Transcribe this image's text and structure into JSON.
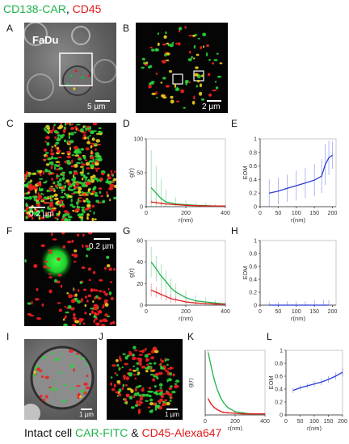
{
  "header": {
    "green": "CD138-CAR",
    "sep": ", ",
    "red": "CD45"
  },
  "footer": {
    "prefix": "Intact cell ",
    "green": "CAR-FITC",
    "amp": " & ",
    "red": "CD45-Alexa647"
  },
  "panels": {
    "A": {
      "letter": "A",
      "cell_label": "FaDu",
      "scale": "5 µm"
    },
    "B": {
      "letter": "B",
      "scale": "2 µm"
    },
    "C": {
      "letter": "C",
      "scale": "0.2 µm"
    },
    "D": {
      "letter": "D"
    },
    "E": {
      "letter": "E"
    },
    "F": {
      "letter": "F",
      "scale": "0.2 µm"
    },
    "G": {
      "letter": "G"
    },
    "H": {
      "letter": "H"
    },
    "I": {
      "letter": "I",
      "scale": "1 µm"
    },
    "J": {
      "letter": "J",
      "scale": "1 µm"
    },
    "K": {
      "letter": "K"
    },
    "L": {
      "letter": "L"
    }
  },
  "colors": {
    "green": "#1fb34a",
    "red": "#e01b1b",
    "blue": "#2b3bd6",
    "axis": "#555555"
  },
  "chart_data": [
    {
      "id": "D",
      "type": "line",
      "xlabel": "r(nm)",
      "ylabel": "g(r)",
      "xlim": [
        0,
        400
      ],
      "ylim": [
        0,
        100
      ],
      "xticks": [
        0,
        200,
        400
      ],
      "yticks": [
        0,
        50,
        100
      ],
      "error_bars": true,
      "series": [
        {
          "color": "green",
          "x": [
            25,
            50,
            75,
            100,
            150,
            200,
            250,
            300,
            350,
            400
          ],
          "values": [
            28,
            20,
            12,
            7,
            4,
            3,
            2,
            1.5,
            1,
            1
          ],
          "err": [
            55,
            40,
            28,
            18,
            10,
            7,
            5,
            4,
            3,
            2
          ]
        },
        {
          "color": "red",
          "x": [
            25,
            50,
            75,
            100,
            150,
            200,
            250,
            300,
            350,
            400
          ],
          "values": [
            7,
            6,
            5,
            4,
            3,
            2,
            1.5,
            1,
            1,
            1
          ],
          "err": [
            3,
            3,
            2,
            2,
            1,
            1,
            1,
            1,
            1,
            1
          ]
        }
      ]
    },
    {
      "id": "E",
      "type": "line",
      "xlabel": "r(nm)",
      "ylabel": "EOM",
      "xlim": [
        0,
        210
      ],
      "ylim": [
        0,
        1
      ],
      "xticks": [
        0,
        50,
        100,
        150,
        200
      ],
      "yticks": [
        0,
        0.2,
        0.4,
        0.6,
        0.8,
        1
      ],
      "error_bars": true,
      "series": [
        {
          "color": "blue",
          "x": [
            25,
            50,
            75,
            100,
            125,
            150,
            170,
            180,
            190,
            200
          ],
          "values": [
            0.2,
            0.23,
            0.27,
            0.31,
            0.35,
            0.39,
            0.45,
            0.62,
            0.72,
            0.76
          ],
          "err": [
            0.2,
            0.2,
            0.2,
            0.22,
            0.22,
            0.24,
            0.25,
            0.3,
            0.25,
            0.2
          ]
        }
      ]
    },
    {
      "id": "G",
      "type": "line",
      "xlabel": "r(nm)",
      "ylabel": "g(r)",
      "xlim": [
        0,
        400
      ],
      "ylim": [
        0,
        60
      ],
      "xticks": [
        0,
        200,
        400
      ],
      "yticks": [
        0,
        20,
        40,
        60
      ],
      "error_bars": true,
      "series": [
        {
          "color": "green",
          "x": [
            25,
            50,
            75,
            100,
            125,
            150,
            200,
            250,
            300,
            350,
            400
          ],
          "values": [
            40,
            34,
            27,
            22,
            16,
            12,
            7,
            4,
            3,
            2,
            1
          ],
          "err": [
            14,
            12,
            11,
            10,
            9,
            8,
            6,
            5,
            4,
            3,
            2
          ]
        },
        {
          "color": "red",
          "x": [
            25,
            50,
            75,
            100,
            125,
            150,
            200,
            250,
            300,
            350,
            400
          ],
          "values": [
            14,
            12,
            10,
            8,
            6,
            5,
            3,
            2,
            1.5,
            1,
            1
          ],
          "err": [
            6,
            5,
            5,
            4,
            4,
            3,
            2,
            2,
            1,
            1,
            1
          ]
        }
      ]
    },
    {
      "id": "H",
      "type": "line",
      "xlabel": "r(nm)",
      "ylabel": "EOM",
      "xlim": [
        0,
        210
      ],
      "ylim": [
        0,
        1
      ],
      "xticks": [
        0,
        50,
        100,
        150,
        200
      ],
      "yticks": [
        0,
        0.2,
        0.4,
        0.6,
        0.8,
        1
      ],
      "error_bars": true,
      "series": [
        {
          "color": "blue",
          "x": [
            25,
            50,
            75,
            100,
            125,
            150,
            175,
            190
          ],
          "values": [
            0,
            0,
            0,
            0,
            0,
            0,
            0,
            0
          ],
          "err": [
            0.05,
            0.05,
            0.06,
            0.06,
            0.06,
            0.07,
            0.08,
            0.08
          ]
        }
      ]
    },
    {
      "id": "K",
      "type": "line",
      "xlabel": "r(nm)",
      "ylabel": "g(r)",
      "xlim": [
        0,
        400
      ],
      "ylim": [
        0,
        60
      ],
      "xticks": [
        0,
        200,
        400
      ],
      "yticks": [],
      "error_bars": true,
      "series": [
        {
          "color": "green",
          "x": [
            20,
            40,
            60,
            80,
            100,
            120,
            150,
            200,
            250,
            300,
            400
          ],
          "values": [
            58,
            45,
            33,
            24,
            17,
            12,
            7,
            3,
            2,
            1,
            1
          ],
          "err": [
            2,
            2,
            2,
            1.5,
            1.5,
            1,
            1,
            1,
            1,
            1,
            1
          ]
        },
        {
          "color": "red",
          "x": [
            20,
            40,
            60,
            80,
            100,
            120,
            150,
            200,
            250,
            300,
            400
          ],
          "values": [
            15,
            10,
            7,
            5,
            3.5,
            2.5,
            2,
            1.5,
            1,
            1,
            1
          ],
          "err": [
            1.5,
            1,
            1,
            1,
            1,
            1,
            1,
            1,
            1,
            1,
            1
          ]
        }
      ]
    },
    {
      "id": "L",
      "type": "line",
      "xlabel": "r(nm)",
      "ylabel": "EOM",
      "xlim": [
        0,
        200
      ],
      "ylim": [
        0,
        1
      ],
      "xticks": [
        0,
        50,
        100,
        150,
        200
      ],
      "yticks": [
        0,
        0.2,
        0.4,
        0.6,
        0.8,
        1
      ],
      "error_bars": true,
      "series": [
        {
          "color": "blue",
          "x": [
            25,
            50,
            75,
            100,
            125,
            150,
            175,
            200
          ],
          "values": [
            0.38,
            0.42,
            0.45,
            0.48,
            0.51,
            0.55,
            0.6,
            0.66
          ],
          "err": [
            0.04,
            0.04,
            0.04,
            0.05,
            0.05,
            0.05,
            0.06,
            0.06
          ]
        }
      ]
    }
  ]
}
